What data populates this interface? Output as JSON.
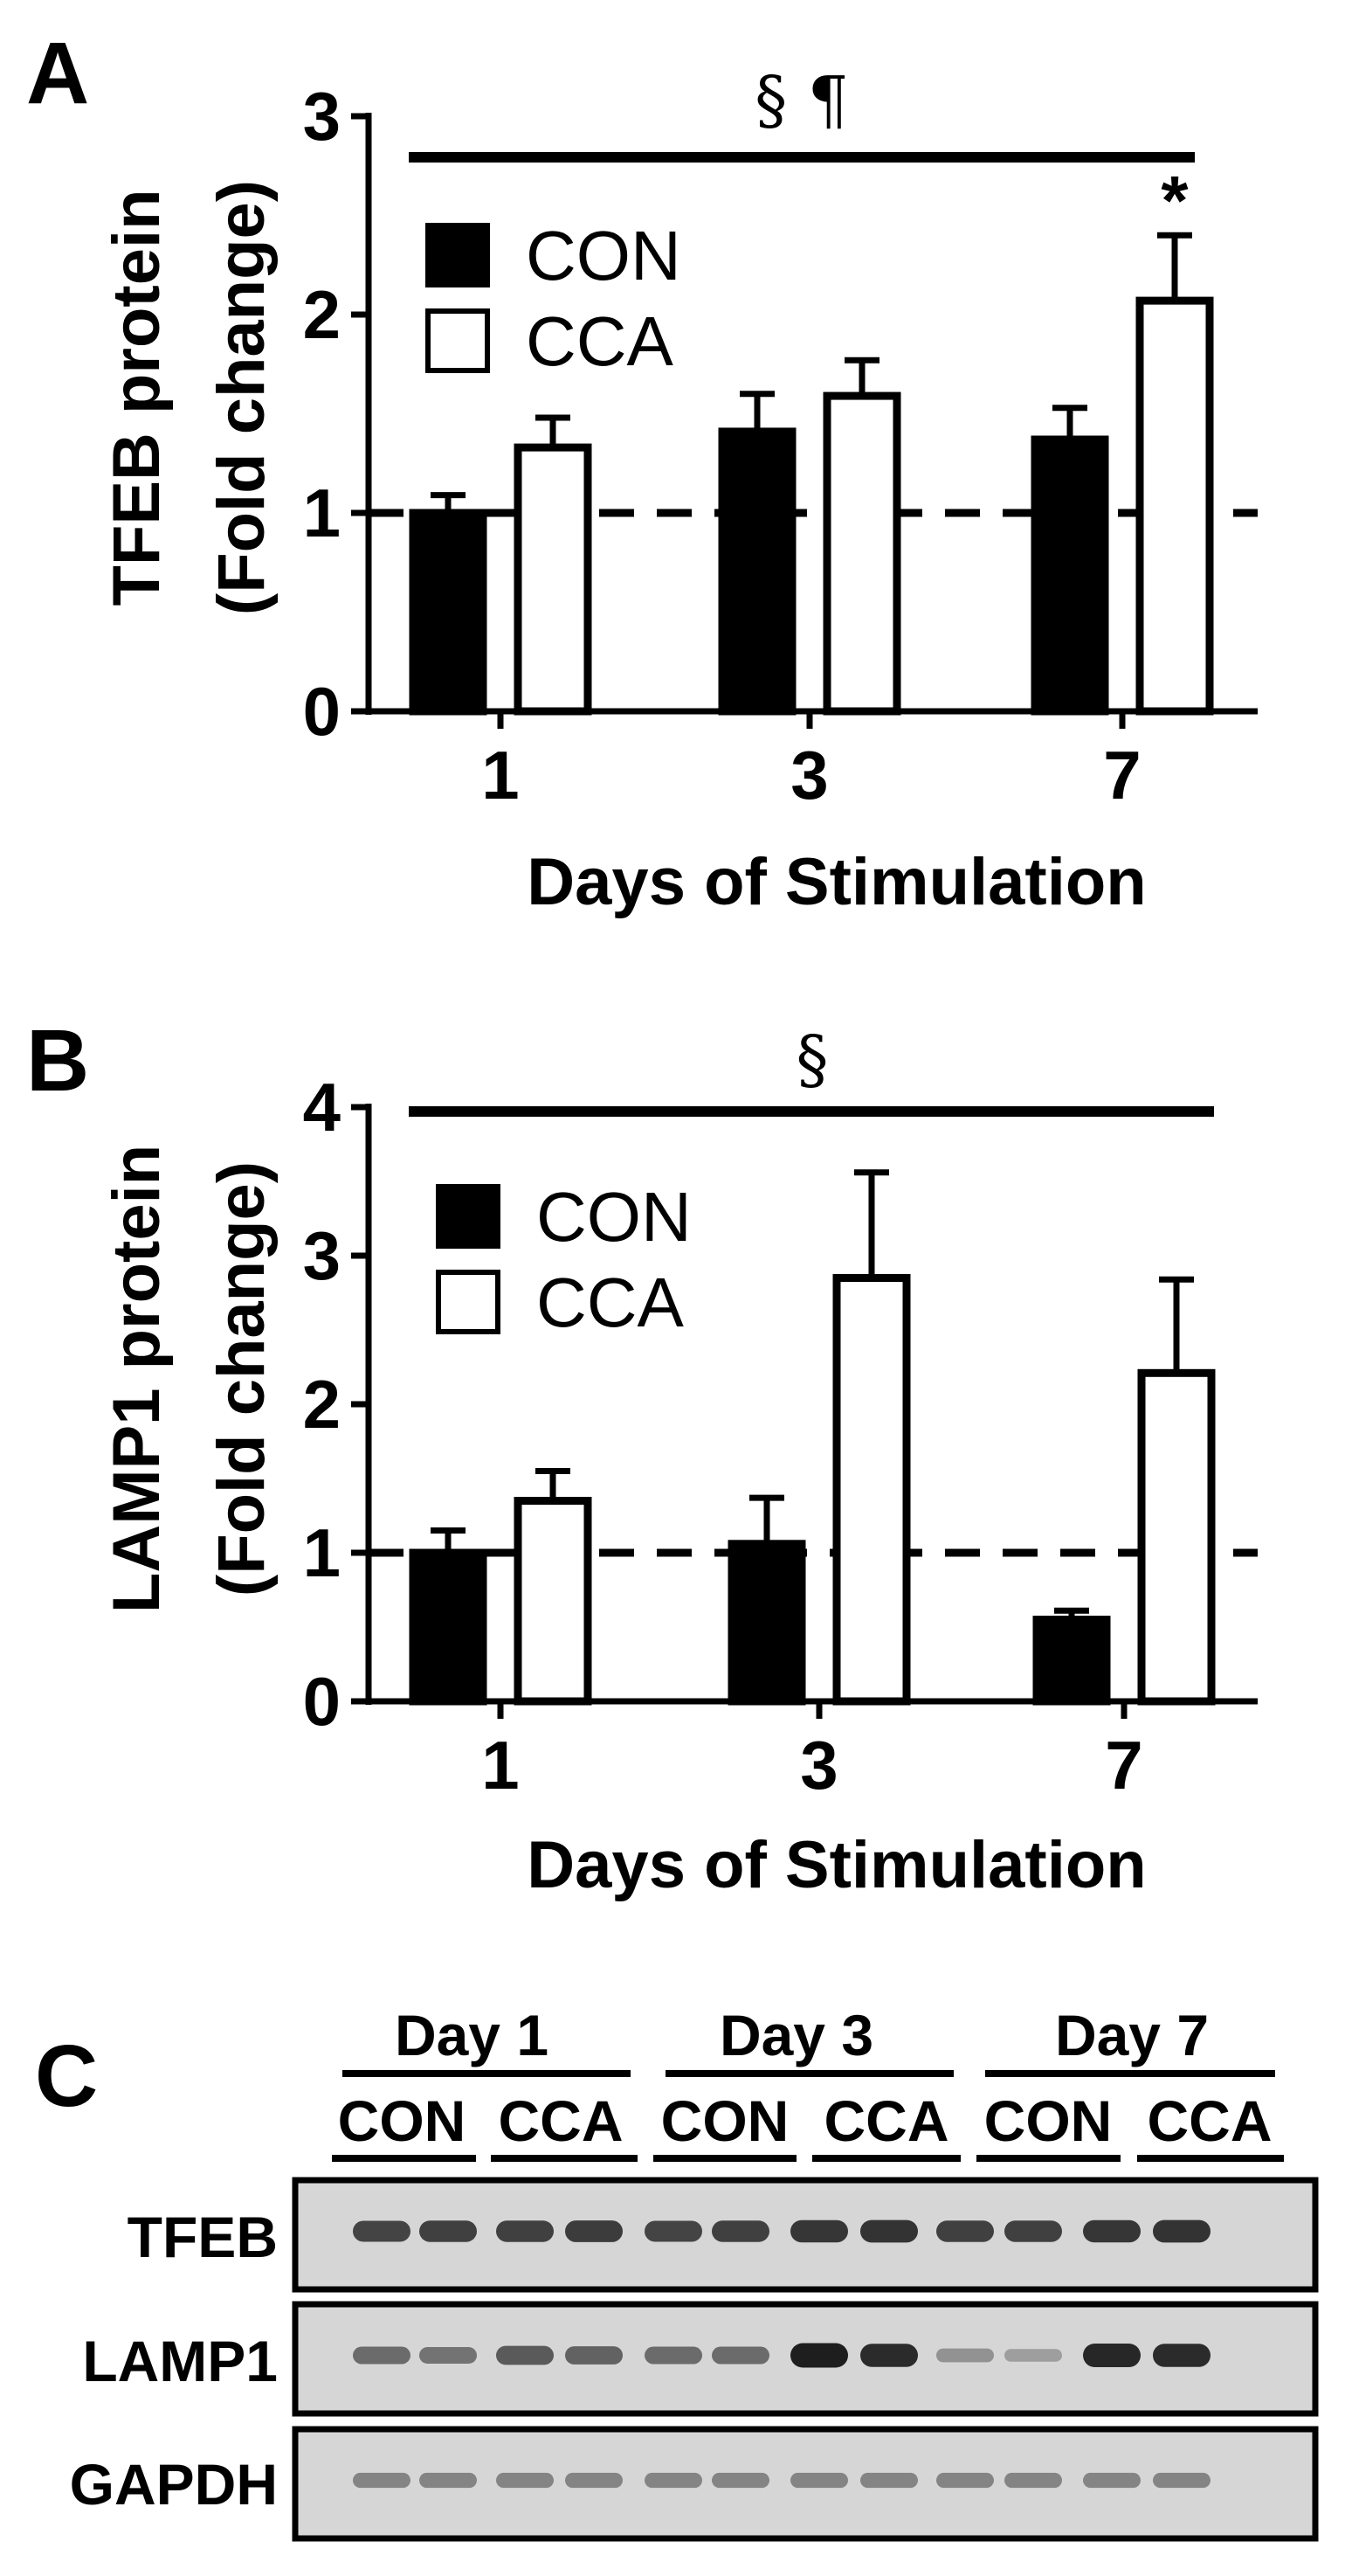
{
  "figure": {
    "panels": [
      {
        "letter": "A",
        "ylabel_line1": "TFEB protein",
        "ylabel_line2": "(Fold change)",
        "xlabel": "Days of Stimulation",
        "annotation": "§ ¶",
        "star": "*"
      },
      {
        "letter": "B",
        "ylabel_line1": "LAMP1 protein",
        "ylabel_line2": "(Fold change)",
        "xlabel": "Days of Stimulation",
        "annotation": "§"
      }
    ],
    "blot": {
      "letter": "C",
      "days": [
        "Day 1",
        "Day 3",
        "Day 7"
      ],
      "conditions": [
        "CON",
        "CCA",
        "CON",
        "CCA",
        "CON",
        "CCA"
      ],
      "rows": [
        {
          "label": "TFEB",
          "intensity": [
            0.78,
            0.8,
            0.8,
            0.82,
            0.78,
            0.8,
            0.86,
            0.88,
            0.8,
            0.8,
            0.86,
            0.88
          ]
        },
        {
          "label": "LAMP1",
          "intensity": [
            0.55,
            0.5,
            0.65,
            0.6,
            0.55,
            0.55,
            1.0,
            0.92,
            0.32,
            0.25,
            0.95,
            0.92
          ]
        },
        {
          "label": "GAPDH",
          "intensity": [
            0.4,
            0.4,
            0.4,
            0.4,
            0.4,
            0.4,
            0.4,
            0.4,
            0.4,
            0.4,
            0.4,
            0.4
          ]
        }
      ]
    }
  },
  "chart_data": [
    {
      "type": "bar",
      "title": "",
      "xlabel": "Days of Stimulation",
      "ylabel": "TFEB protein (Fold change)",
      "categories": [
        "1",
        "3",
        "7"
      ],
      "ylim": [
        0,
        3
      ],
      "yticks": [
        0,
        1,
        2,
        3
      ],
      "reference_line": 1,
      "legend_position": "top-left",
      "series": [
        {
          "name": "CON",
          "fill": "#000000",
          "values": [
            1.0,
            1.41,
            1.37
          ],
          "errors": [
            0.09,
            0.19,
            0.16
          ]
        },
        {
          "name": "CCA",
          "fill": "#ffffff",
          "values": [
            1.33,
            1.59,
            2.07
          ],
          "errors": [
            0.15,
            0.18,
            0.33
          ]
        }
      ]
    },
    {
      "type": "bar",
      "title": "",
      "xlabel": "Days of Stimulation",
      "ylabel": "LAMP1 protein (Fold change)",
      "categories": [
        "1",
        "3",
        "7"
      ],
      "ylim": [
        0,
        4
      ],
      "yticks": [
        0,
        1,
        2,
        3,
        4
      ],
      "reference_line": 1,
      "legend_position": "top-left",
      "series": [
        {
          "name": "CON",
          "fill": "#000000",
          "values": [
            1.0,
            1.06,
            0.55
          ],
          "errors": [
            0.15,
            0.31,
            0.06
          ]
        },
        {
          "name": "CCA",
          "fill": "#ffffff",
          "values": [
            1.35,
            2.85,
            2.21
          ],
          "errors": [
            0.2,
            0.71,
            0.63
          ]
        }
      ]
    }
  ]
}
